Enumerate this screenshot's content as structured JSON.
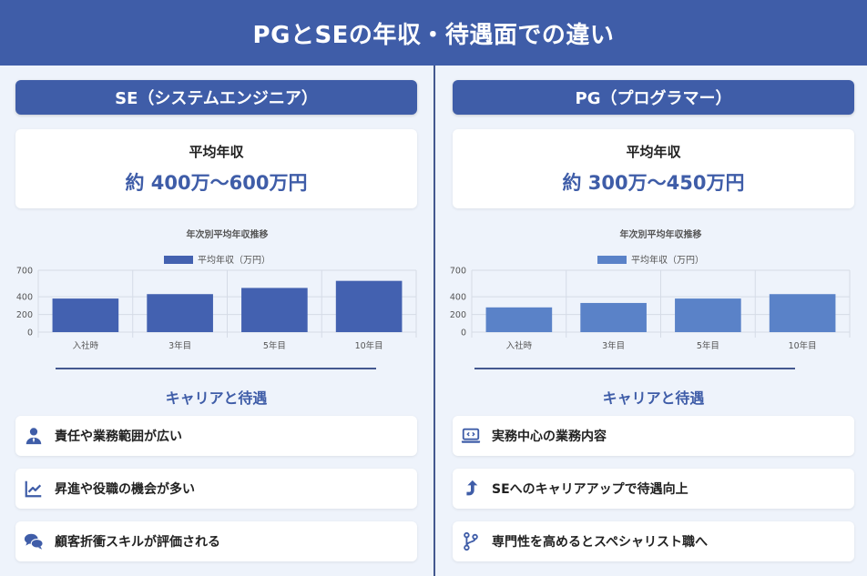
{
  "header": {
    "title": "PGとSEの年収・待遇面での違い"
  },
  "se": {
    "title": "SE（システムエンジニア）",
    "salary_label": "平均年収",
    "salary_value": "約 400万〜600万円",
    "section_title": "キャリアと待遇",
    "items": [
      {
        "icon": "person-tie-icon",
        "label": "責任や業務範囲が広い"
      },
      {
        "icon": "line-chart-icon",
        "label": "昇進や役職の機会が多い"
      },
      {
        "icon": "speech-bubbles-icon",
        "label": "顧客折衝スキルが評価される"
      }
    ],
    "color": "#4361b0"
  },
  "pg": {
    "title": "PG（プログラマー）",
    "salary_label": "平均年収",
    "salary_value": "約 300万〜450万円",
    "section_title": "キャリアと待遇",
    "items": [
      {
        "icon": "laptop-code-icon",
        "label": "実務中心の業務内容"
      },
      {
        "icon": "arrow-up-turn-icon",
        "label": "SEへのキャリアアップで待遇向上"
      },
      {
        "icon": "code-branch-icon",
        "label": "専門性を高めるとスペシャリスト職へ"
      }
    ],
    "color": "#5a82c8"
  },
  "chart_data": [
    {
      "type": "bar",
      "title": "年次別平均年収推移",
      "categories": [
        "入社時",
        "3年目",
        "5年目",
        "10年目"
      ],
      "series": [
        {
          "name": "平均年収（万円）",
          "values": [
            380,
            430,
            500,
            580
          ]
        }
      ],
      "yticks": [
        0,
        200,
        400,
        700
      ],
      "ylim": [
        0,
        700
      ],
      "legend": "top",
      "grid": true,
      "color": "#4361b0"
    },
    {
      "type": "bar",
      "title": "年次別平均年収推移",
      "categories": [
        "入社時",
        "3年目",
        "5年目",
        "10年目"
      ],
      "series": [
        {
          "name": "平均年収（万円）",
          "values": [
            280,
            330,
            380,
            430
          ]
        }
      ],
      "yticks": [
        0,
        200,
        400,
        700
      ],
      "ylim": [
        0,
        700
      ],
      "legend": "top",
      "grid": true,
      "color": "#5a82c8"
    }
  ]
}
